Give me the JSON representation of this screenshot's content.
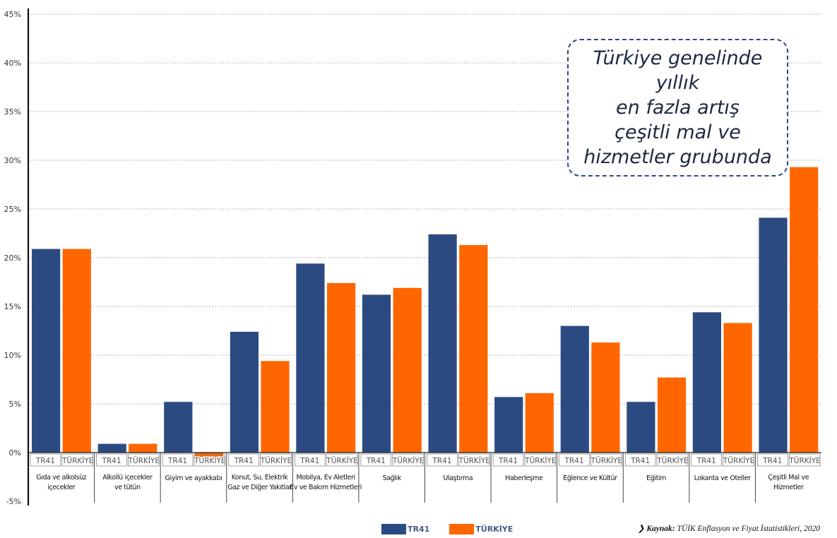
{
  "chart_data": {
    "type": "bar",
    "title": "",
    "xlabel": "",
    "ylabel": "",
    "ylim": [
      -5,
      45
    ],
    "yticks": [
      "-5%",
      "0%",
      "5%",
      "10%",
      "15%",
      "20%",
      "25%",
      "30%",
      "35%",
      "40%",
      "45%"
    ],
    "grid": true,
    "legend_position": "bottom",
    "categories": [
      [
        "Gıda ve alkolsüz",
        "içecekler"
      ],
      [
        "Alkollü içecekler",
        "ve tütün"
      ],
      [
        "Giyim ve ayakkabı"
      ],
      [
        "Konut, Su, Elektrik",
        "Gaz ve Diğer Yakıtlar"
      ],
      [
        "Mobilya, Ev Aletleri",
        "Ev ve Bakım Hizmetleri"
      ],
      [
        "Sağlık"
      ],
      [
        "Ulaştırma"
      ],
      [
        "Haberleşme"
      ],
      [
        "Eğlence ve Kültür"
      ],
      [
        "Eğitim"
      ],
      [
        "Lokanta ve Oteller"
      ],
      [
        "Çeşitli Mal ve",
        "Hizmetler"
      ]
    ],
    "series": [
      {
        "name": "TR41",
        "color": "#2c4a82",
        "values": [
          20.9,
          0.9,
          5.2,
          12.4,
          19.4,
          16.2,
          22.4,
          5.7,
          13.0,
          5.2,
          14.4,
          24.1
        ]
      },
      {
        "name": "TÜRKİYE",
        "color": "#ff6600",
        "values": [
          20.9,
          0.9,
          -0.4,
          9.4,
          17.4,
          16.9,
          21.3,
          6.1,
          11.3,
          7.7,
          13.3,
          29.3
        ]
      }
    ],
    "sublabels": [
      "TR41",
      "TÜRKİYE"
    ]
  },
  "callout": {
    "lines": [
      "Türkiye genelinde yıllık",
      "en fazla artış",
      "çeşitli mal ve",
      "hizmetler grubunda"
    ]
  },
  "legend": {
    "items": [
      {
        "label": "TR41",
        "color": "#2c4a82"
      },
      {
        "label": "TÜRKİYE",
        "color": "#ff6600"
      }
    ]
  },
  "source": {
    "prefix": "Kaynak:",
    "text": "TÜİK Enflasyon ve Fiyat İstatistikleri, 2020"
  }
}
